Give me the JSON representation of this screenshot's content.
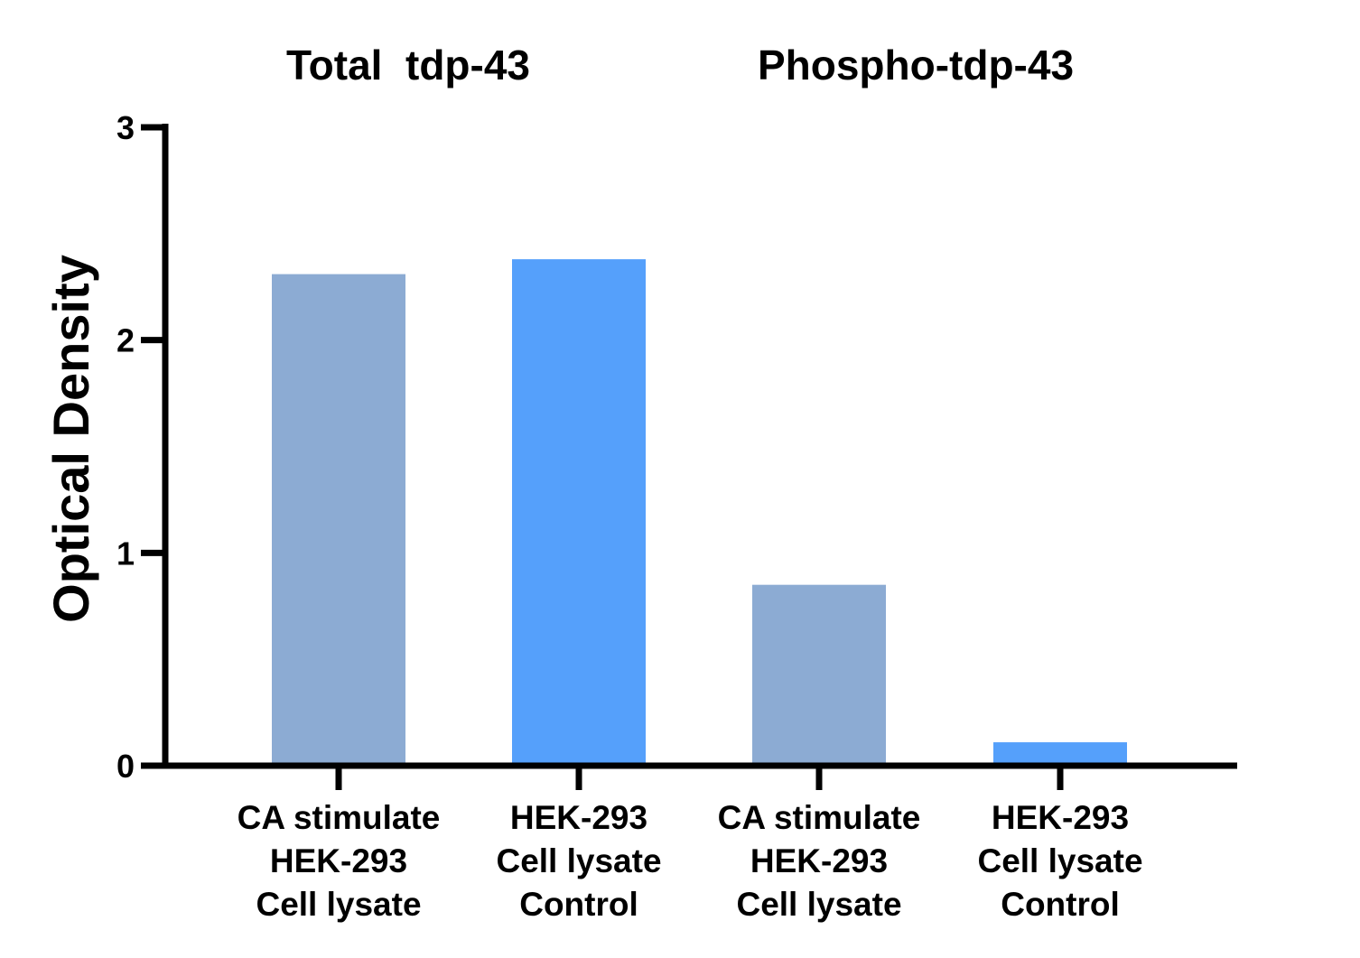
{
  "chart_data": {
    "type": "bar",
    "group_titles": [
      "Total  tdp-43",
      "Phospho-tdp-43"
    ],
    "ylabel": "Optical Density",
    "xlabel": "",
    "ylim": [
      0,
      3
    ],
    "yticks": [
      "0",
      "1",
      "2",
      "3"
    ],
    "grid": false,
    "categories": [
      [
        "CA stimulate",
        "HEK-293",
        "Cell lysate"
      ],
      [
        "HEK-293",
        "Cell lysate",
        "Control"
      ],
      [
        "CA stimulate",
        "HEK-293",
        "Cell lysate"
      ],
      [
        "HEK-293",
        "Cell lysate",
        "Control"
      ]
    ],
    "values": [
      2.31,
      2.38,
      0.85,
      0.11
    ],
    "bar_colors": [
      "#8CABD3",
      "#55A0FB",
      "#8CABD3",
      "#55A0FB"
    ],
    "axis_color": "#000000"
  }
}
